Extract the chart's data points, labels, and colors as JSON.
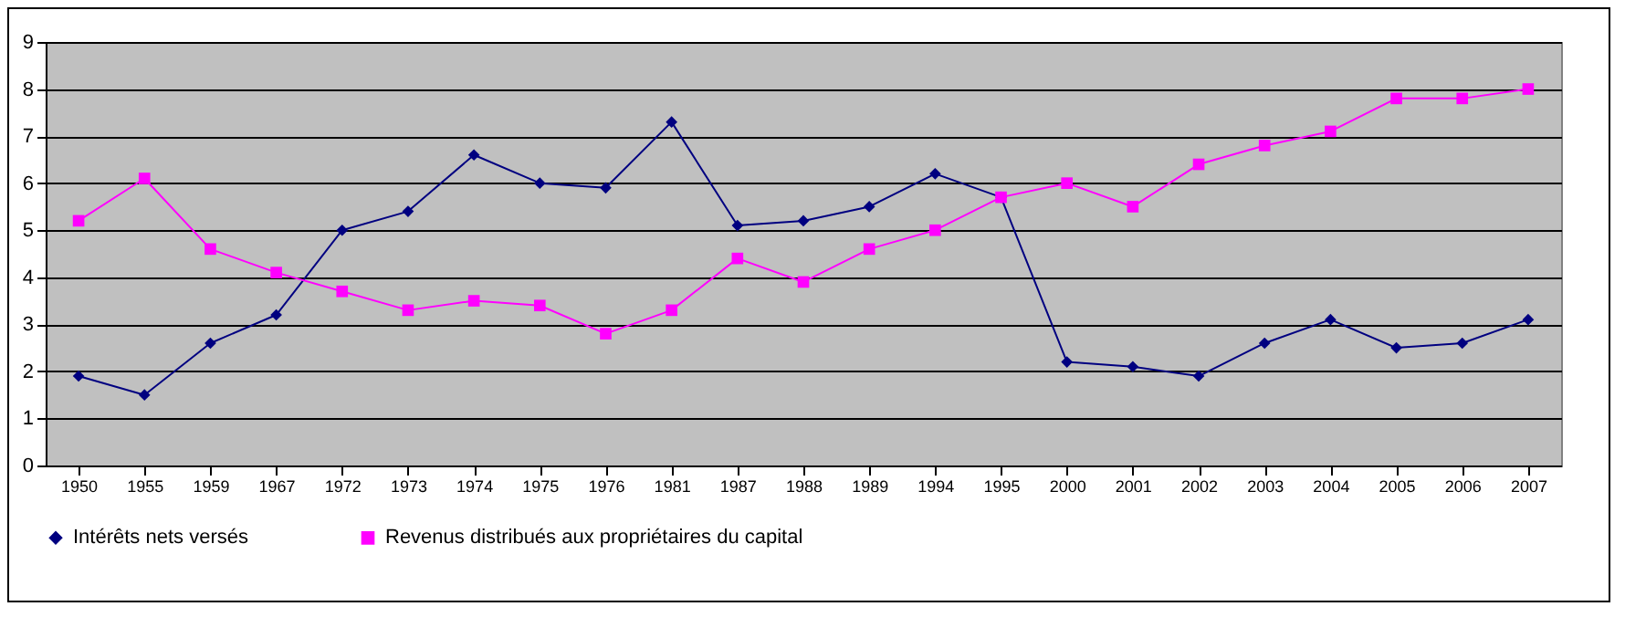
{
  "chart_data": {
    "type": "line",
    "categories": [
      "1950",
      "1955",
      "1959",
      "1967",
      "1972",
      "1973",
      "1974",
      "1975",
      "1976",
      "1981",
      "1987",
      "1988",
      "1989",
      "1994",
      "1995",
      "2000",
      "2001",
      "2002",
      "2003",
      "2004",
      "2005",
      "2006",
      "2007"
    ],
    "series": [
      {
        "name": "Intérêts nets versés",
        "color": "#000080",
        "marker": "diamond",
        "values": [
          1.9,
          1.5,
          2.6,
          3.2,
          5.0,
          5.4,
          6.6,
          6.0,
          5.9,
          7.3,
          5.1,
          5.2,
          5.5,
          6.2,
          5.7,
          2.2,
          2.1,
          1.9,
          2.6,
          3.1,
          2.5,
          2.6,
          3.1
        ]
      },
      {
        "name": "Revenus distribués aux propriétaires du capital",
        "color": "#ff00ff",
        "marker": "square",
        "values": [
          5.2,
          6.1,
          4.6,
          4.1,
          3.7,
          3.3,
          3.5,
          3.4,
          2.8,
          3.3,
          4.4,
          3.9,
          4.6,
          5.0,
          5.7,
          6.0,
          5.5,
          6.4,
          6.8,
          7.1,
          7.8,
          7.8,
          8.0
        ]
      }
    ],
    "ylim": [
      0,
      9
    ],
    "yticks": [
      0,
      1,
      2,
      3,
      4,
      5,
      6,
      7,
      8,
      9
    ],
    "grid": "y",
    "legend": "bottom"
  }
}
